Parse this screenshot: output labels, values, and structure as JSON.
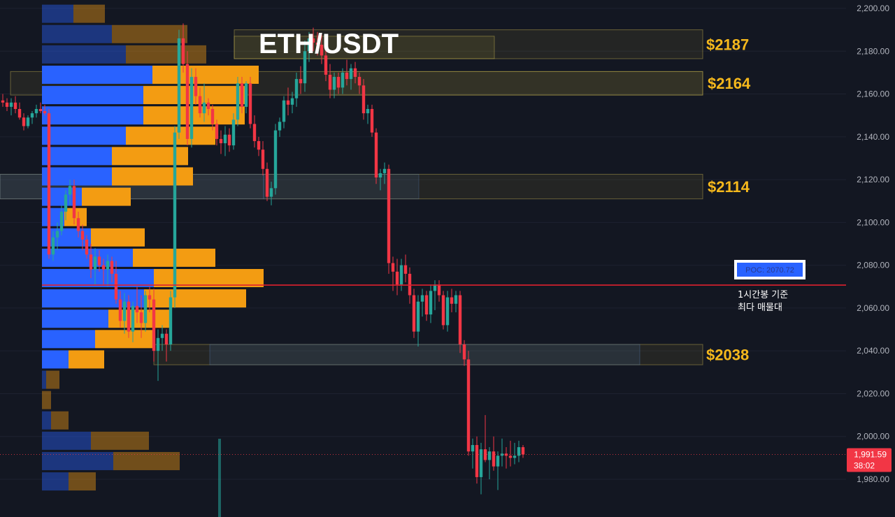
{
  "chart_data": {
    "type": "candlestick",
    "title": "ETH/USDT",
    "y_axis": {
      "ticks": [
        "2,200.00",
        "2,180.00",
        "2,160.00",
        "2,140.00",
        "2,120.00",
        "2,100.00",
        "2,080.00",
        "2,060.00",
        "2,040.00",
        "2,020.00",
        "2,000.00",
        "1,980.00"
      ],
      "tick_values": [
        2200,
        2180,
        2160,
        2140,
        2120,
        2100,
        2080,
        2060,
        2040,
        2020,
        2000,
        1980
      ],
      "range": [
        1970,
        2203
      ]
    },
    "zones": [
      {
        "label": "$2187",
        "from": 2176.5,
        "to": 2190.0
      },
      {
        "label": "$2164",
        "from": 2159.5,
        "to": 2170.5
      },
      {
        "label": "$2114",
        "from": 2111.0,
        "to": 2122.5
      },
      {
        "label": "$2038",
        "from": 2033.5,
        "to": 2043.0
      }
    ],
    "poc": {
      "label": "POC: 2070.72",
      "price": 2070.72,
      "note_line1": "1시간봉 기준",
      "note_line2": "최다 매물대"
    },
    "last_price": {
      "price": 1991.59,
      "label": "1,991.59",
      "countdown": "38:02"
    },
    "volume_profile": [
      {
        "price": 2197.5,
        "buy": 45,
        "sell": 45,
        "bright": false
      },
      {
        "price": 2188.0,
        "buy": 100,
        "sell": 108,
        "bright": false
      },
      {
        "price": 2178.5,
        "buy": 120,
        "sell": 115,
        "bright": false
      },
      {
        "price": 2169.0,
        "buy": 158,
        "sell": 152,
        "bright": true
      },
      {
        "price": 2159.5,
        "buy": 145,
        "sell": 145,
        "bright": true
      },
      {
        "price": 2150.0,
        "buy": 145,
        "sell": 145,
        "bright": true
      },
      {
        "price": 2140.5,
        "buy": 120,
        "sell": 128,
        "bright": true
      },
      {
        "price": 2131.0,
        "buy": 100,
        "sell": 109,
        "bright": true
      },
      {
        "price": 2121.5,
        "buy": 100,
        "sell": 116,
        "bright": true
      },
      {
        "price": 2112.0,
        "buy": 57,
        "sell": 70,
        "bright": true
      },
      {
        "price": 2102.5,
        "buy": 32,
        "sell": 32,
        "bright": true
      },
      {
        "price": 2093.0,
        "buy": 70,
        "sell": 77,
        "bright": true
      },
      {
        "price": 2083.5,
        "buy": 130,
        "sell": 118,
        "bright": true
      },
      {
        "price": 2074.0,
        "buy": 160,
        "sell": 157,
        "bright": true
      },
      {
        "price": 2064.5,
        "buy": 146,
        "sell": 146,
        "bright": true
      },
      {
        "price": 2055.0,
        "buy": 95,
        "sell": 88,
        "bright": true
      },
      {
        "price": 2045.5,
        "buy": 76,
        "sell": 83,
        "bright": true
      },
      {
        "price": 2036.0,
        "buy": 38,
        "sell": 51,
        "bright": true
      },
      {
        "price": 2026.5,
        "buy": 6,
        "sell": 19,
        "bright": false
      },
      {
        "price": 2017.0,
        "buy": 0,
        "sell": 13,
        "bright": false
      },
      {
        "price": 2007.5,
        "buy": 13,
        "sell": 25,
        "bright": false
      },
      {
        "price": 1998.0,
        "buy": 70,
        "sell": 83,
        "bright": false
      },
      {
        "price": 1988.5,
        "buy": 102,
        "sell": 95,
        "bright": false
      },
      {
        "price": 1979.0,
        "buy": 38,
        "sell": 39,
        "bright": false
      }
    ],
    "candles": [
      [
        2157,
        2160,
        2154,
        2156
      ],
      [
        2156,
        2158,
        2152,
        2154
      ],
      [
        2154,
        2158,
        2150,
        2156
      ],
      [
        2156,
        2159,
        2151,
        2153
      ],
      [
        2153,
        2156,
        2148,
        2149
      ],
      [
        2149,
        2151,
        2143,
        2145
      ],
      [
        2145,
        2150,
        2144,
        2149
      ],
      [
        2149,
        2152,
        2146,
        2151
      ],
      [
        2151,
        2155,
        2149,
        2153
      ],
      [
        2153,
        2156,
        2151,
        2152
      ],
      [
        2152,
        2155,
        2150,
        2151
      ],
      [
        2151,
        2153,
        2083,
        2085
      ],
      [
        2085,
        2096,
        2082,
        2093
      ],
      [
        2093,
        2100,
        2087,
        2096
      ],
      [
        2096,
        2108,
        2094,
        2105
      ],
      [
        2105,
        2115,
        2101,
        2113
      ],
      [
        2113,
        2120,
        2108,
        2117
      ],
      [
        2117,
        2120,
        2099,
        2102
      ],
      [
        2102,
        2105,
        2093,
        2096
      ],
      [
        2096,
        2099,
        2087,
        2092
      ],
      [
        2092,
        2094,
        2083,
        2085
      ],
      [
        2085,
        2090,
        2074,
        2078
      ],
      [
        2078,
        2088,
        2071,
        2084
      ],
      [
        2084,
        2087,
        2077,
        2080
      ],
      [
        2080,
        2083,
        2071,
        2078
      ],
      [
        2078,
        2085,
        2070,
        2082
      ],
      [
        2082,
        2084,
        2072,
        2076
      ],
      [
        2076,
        2082,
        2062,
        2064
      ],
      [
        2064,
        2068,
        2051,
        2054
      ],
      [
        2054,
        2067,
        2048,
        2063
      ],
      [
        2063,
        2066,
        2046,
        2049
      ],
      [
        2049,
        2063,
        2044,
        2061
      ],
      [
        2061,
        2070,
        2053,
        2058
      ],
      [
        2058,
        2066,
        2046,
        2053
      ],
      [
        2053,
        2068,
        2049,
        2066
      ],
      [
        2066,
        2070,
        2058,
        2064
      ],
      [
        2064,
        2069,
        2035,
        2040
      ],
      [
        2040,
        2050,
        2026,
        2046
      ],
      [
        2046,
        2052,
        2040,
        2048
      ],
      [
        2048,
        2050,
        2035,
        2043
      ],
      [
        2043,
        2068,
        2040,
        2065
      ],
      [
        2065,
        2145,
        2060,
        2142
      ],
      [
        2142,
        2190,
        2139,
        2186
      ],
      [
        2186,
        2193,
        2170,
        2174
      ],
      [
        2174,
        2180,
        2136,
        2139
      ],
      [
        2139,
        2172,
        2135,
        2168
      ],
      [
        2168,
        2172,
        2155,
        2159
      ],
      [
        2159,
        2163,
        2149,
        2151
      ],
      [
        2151,
        2165,
        2147,
        2156
      ],
      [
        2156,
        2158,
        2150,
        2153
      ],
      [
        2153,
        2155,
        2143,
        2146
      ],
      [
        2146,
        2148,
        2136,
        2139
      ],
      [
        2139,
        2143,
        2132,
        2137
      ],
      [
        2137,
        2145,
        2131,
        2141
      ],
      [
        2141,
        2144,
        2133,
        2136
      ],
      [
        2136,
        2151,
        2134,
        2148
      ],
      [
        2148,
        2168,
        2145,
        2165
      ],
      [
        2165,
        2168,
        2151,
        2154
      ],
      [
        2154,
        2166,
        2151,
        2165
      ],
      [
        2165,
        2168,
        2144,
        2146
      ],
      [
        2146,
        2150,
        2135,
        2138
      ],
      [
        2138,
        2140,
        2131,
        2134
      ],
      [
        2134,
        2138,
        2122,
        2125
      ],
      [
        2125,
        2128,
        2110,
        2112
      ],
      [
        2112,
        2119,
        2108,
        2116
      ],
      [
        2116,
        2146,
        2113,
        2143
      ],
      [
        2143,
        2149,
        2140,
        2147
      ],
      [
        2147,
        2159,
        2144,
        2157
      ],
      [
        2157,
        2163,
        2150,
        2155
      ],
      [
        2155,
        2161,
        2151,
        2158
      ],
      [
        2158,
        2170,
        2154,
        2167
      ],
      [
        2167,
        2173,
        2160,
        2165
      ],
      [
        2165,
        2185,
        2161,
        2180
      ],
      [
        2180,
        2189,
        2175,
        2186
      ],
      [
        2186,
        2191,
        2180,
        2184
      ],
      [
        2184,
        2189,
        2178,
        2183
      ],
      [
        2183,
        2188,
        2174,
        2178
      ],
      [
        2178,
        2185,
        2166,
        2169
      ],
      [
        2169,
        2174,
        2158,
        2162
      ],
      [
        2162,
        2170,
        2158,
        2168
      ],
      [
        2168,
        2170,
        2160,
        2163
      ],
      [
        2163,
        2172,
        2160,
        2170
      ],
      [
        2170,
        2176,
        2164,
        2167
      ],
      [
        2167,
        2174,
        2162,
        2172
      ],
      [
        2172,
        2175,
        2165,
        2168
      ],
      [
        2168,
        2170,
        2160,
        2164
      ],
      [
        2164,
        2167,
        2148,
        2151
      ],
      [
        2151,
        2155,
        2146,
        2153
      ],
      [
        2153,
        2155,
        2140,
        2142
      ],
      [
        2142,
        2144,
        2118,
        2121
      ],
      [
        2121,
        2125,
        2115,
        2123
      ],
      [
        2123,
        2128,
        2118,
        2125
      ],
      [
        2125,
        2127,
        2076,
        2081
      ],
      [
        2081,
        2084,
        2068,
        2077
      ],
      [
        2077,
        2083,
        2066,
        2071
      ],
      [
        2071,
        2083,
        2068,
        2080
      ],
      [
        2080,
        2085,
        2072,
        2076
      ],
      [
        2076,
        2079,
        2062,
        2066
      ],
      [
        2066,
        2069,
        2046,
        2049
      ],
      [
        2049,
        2066,
        2042,
        2063
      ],
      [
        2063,
        2069,
        2056,
        2066
      ],
      [
        2066,
        2068,
        2054,
        2057
      ],
      [
        2057,
        2071,
        2053,
        2068
      ],
      [
        2068,
        2073,
        2059,
        2071
      ],
      [
        2071,
        2073,
        2063,
        2066
      ],
      [
        2066,
        2068,
        2050,
        2052
      ],
      [
        2052,
        2068,
        2049,
        2065
      ],
      [
        2065,
        2069,
        2058,
        2062
      ],
      [
        2062,
        2068,
        2058,
        2066
      ],
      [
        2066,
        2068,
        2039,
        2043
      ],
      [
        2043,
        2045,
        2033,
        2036
      ],
      [
        2036,
        2040,
        1991,
        1993
      ],
      [
        1993,
        1999,
        1985,
        1996
      ],
      [
        1996,
        2000,
        1978,
        1981
      ],
      [
        1981,
        1997,
        1973,
        1994
      ],
      [
        1994,
        2010,
        1988,
        1989
      ],
      [
        1989,
        1995,
        1980,
        1993
      ],
      [
        1993,
        2000,
        1984,
        1986
      ],
      [
        1986,
        1993,
        1975,
        1991
      ],
      [
        1991,
        1999,
        1986,
        1992
      ],
      [
        1992,
        1995,
        1985,
        1991
      ],
      [
        1991,
        1998,
        1986,
        1990
      ],
      [
        1990,
        1997,
        1987,
        1991
      ],
      [
        1991,
        1998,
        1988,
        1995
      ],
      [
        1995,
        1996,
        1990,
        1991.59
      ]
    ]
  },
  "colors": {
    "background": "#131722",
    "bull": "#26a69a",
    "bear": "#f23645",
    "profile_buy": "#2962ff",
    "profile_sell": "#f39c12",
    "zone_label": "#f5b81c",
    "poc_line": "#e0212e"
  }
}
